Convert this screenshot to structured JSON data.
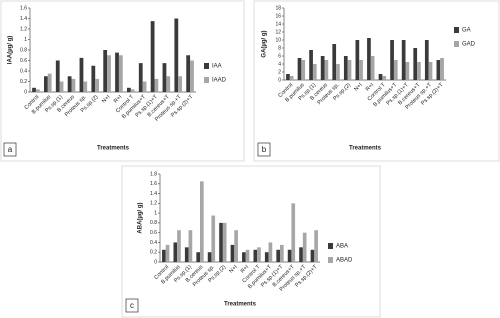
{
  "chart_data": [
    {
      "type": "bar",
      "panel_label": "a",
      "ylabel": "IAA(µg/ g)",
      "xlabel": "Treatments",
      "categories": [
        "Control",
        "B.pumilus",
        "Ps.sp.(1)",
        "B.cereus",
        "Proteus sp.",
        "Ps.sp.(2)",
        "N+I",
        "R+I",
        "Control T",
        "B.pumilus+T",
        "Ps.sp.(1)+T",
        "B.cereus+T",
        "Proteus sp.+T",
        "Ps.sp.(2)+T"
      ],
      "series": [
        {
          "name": "IAA",
          "color": "#3a3a3a",
          "values": [
            0.08,
            0.3,
            0.6,
            0.3,
            0.65,
            0.5,
            0.8,
            0.75,
            0.08,
            0.55,
            1.35,
            0.55,
            1.4,
            0.7
          ]
        },
        {
          "name": "IAAD",
          "color": "#a6a6a6",
          "values": [
            0.05,
            0.35,
            0.2,
            0.25,
            0.2,
            0.25,
            0.7,
            0.7,
            0.05,
            0.2,
            0.25,
            0.3,
            0.3,
            0.6
          ]
        }
      ],
      "ylim": [
        0,
        1.6
      ],
      "yticks": [
        0,
        0.2,
        0.4,
        0.6,
        0.8,
        1,
        1.2,
        1.4,
        1.6
      ]
    },
    {
      "type": "bar",
      "panel_label": "b",
      "ylabel": "GA(µg/ g)",
      "xlabel": "Treatments",
      "categories": [
        "Control",
        "B.pumilus",
        "Ps.sp.(1)",
        "B.cereus",
        "Proteus sp.",
        "Ps.sp.(2)",
        "N+I",
        "R+I",
        "Control T",
        "B.pumilus+T",
        "Ps.sp.(1)+T",
        "B.cereus+T",
        "Proteus sp.+T",
        "Ps.sp.(2)+T"
      ],
      "series": [
        {
          "name": "GA",
          "color": "#3a3a3a",
          "values": [
            1.5,
            5.5,
            7.5,
            6,
            9,
            6,
            10,
            10.5,
            1.5,
            10,
            10,
            8,
            10,
            5
          ]
        },
        {
          "name": "GAD",
          "color": "#a6a6a6",
          "values": [
            1,
            5,
            4,
            5,
            4,
            5,
            5,
            6,
            1,
            5,
            4.5,
            4.5,
            4.5,
            5.5
          ]
        }
      ],
      "ylim": [
        0,
        18
      ],
      "yticks": [
        0,
        2,
        4,
        6,
        8,
        10,
        12,
        14,
        16,
        18
      ]
    },
    {
      "type": "bar",
      "panel_label": "c",
      "ylabel": "ABA(µg/ g)",
      "xlabel": "Treatments",
      "categories": [
        "Control",
        "B.pumilus",
        "Ps.sp.(1)",
        "B.cereus",
        "Proteus sp.",
        "Ps.sp.(2)",
        "N+I",
        "R+I",
        "Control T",
        "B.pumilus+T",
        "Ps.sp.(1)+T",
        "B.cereus+T",
        "Proteus sp.+T",
        "Ps.sp.(2)+T"
      ],
      "series": [
        {
          "name": "ABA",
          "color": "#3a3a3a",
          "values": [
            0.25,
            0.4,
            0.3,
            0.2,
            0.2,
            0.8,
            0.35,
            0.2,
            0.25,
            0.2,
            0.25,
            0.25,
            0.3,
            0.25
          ]
        },
        {
          "name": "ABAD",
          "color": "#a6a6a6",
          "values": [
            0.35,
            0.65,
            0.65,
            1.65,
            0.95,
            0.8,
            0.65,
            0.25,
            0.3,
            0.4,
            0.35,
            1.2,
            0.6,
            0.65
          ]
        }
      ],
      "ylim": [
        0,
        1.8
      ],
      "yticks": [
        0,
        0.2,
        0.4,
        0.6,
        0.8,
        1,
        1.2,
        1.4,
        1.6,
        1.8
      ]
    }
  ]
}
